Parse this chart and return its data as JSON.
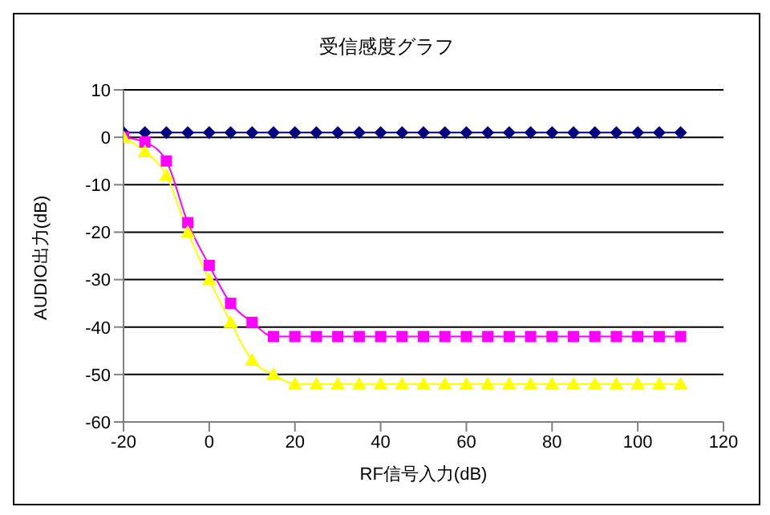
{
  "chart_data": {
    "type": "line",
    "title": "受信感度グラフ",
    "xlabel": "RF信号入力(dB)",
    "ylabel": "AUDIO出力(dB)",
    "x": [
      -20,
      -15,
      -10,
      -5,
      0,
      5,
      10,
      15,
      20,
      25,
      30,
      35,
      40,
      45,
      50,
      55,
      60,
      65,
      70,
      75,
      80,
      85,
      90,
      95,
      100,
      105,
      110
    ],
    "series": [
      {
        "color": "#000080",
        "marker": "diamond",
        "values": [
          1,
          1,
          1,
          1,
          1,
          1,
          1,
          1,
          1,
          1,
          1,
          1,
          1,
          1,
          1,
          1,
          1,
          1,
          1,
          1,
          1,
          1,
          1,
          1,
          1,
          1,
          1
        ]
      },
      {
        "color": "#ff00ff",
        "marker": "square",
        "values": [
          0,
          -1,
          -5,
          -18,
          -27,
          -35,
          -39,
          -42,
          -42,
          -42,
          -42,
          -42,
          -42,
          -42,
          -42,
          -42,
          -42,
          -42,
          -42,
          -42,
          -42,
          -42,
          -42,
          -42,
          -42,
          -42,
          -42
        ]
      },
      {
        "color": "#ffff00",
        "marker": "triangle",
        "values": [
          0,
          -3,
          -8,
          -20,
          -30,
          -39,
          -47,
          -50,
          -52,
          -52,
          -52,
          -52,
          -52,
          -52,
          -52,
          -52,
          -52,
          -52,
          -52,
          -52,
          -52,
          -52,
          -52,
          -52,
          -52,
          -52,
          -52
        ]
      }
    ],
    "xlim": [
      -20,
      120
    ],
    "xticks": [
      -20,
      0,
      20,
      40,
      60,
      80,
      100,
      120
    ],
    "ylim": [
      -60,
      10
    ],
    "yticks": [
      -60,
      -50,
      -40,
      -30,
      -20,
      -10,
      0,
      10
    ],
    "grid": "y",
    "legend": false
  }
}
